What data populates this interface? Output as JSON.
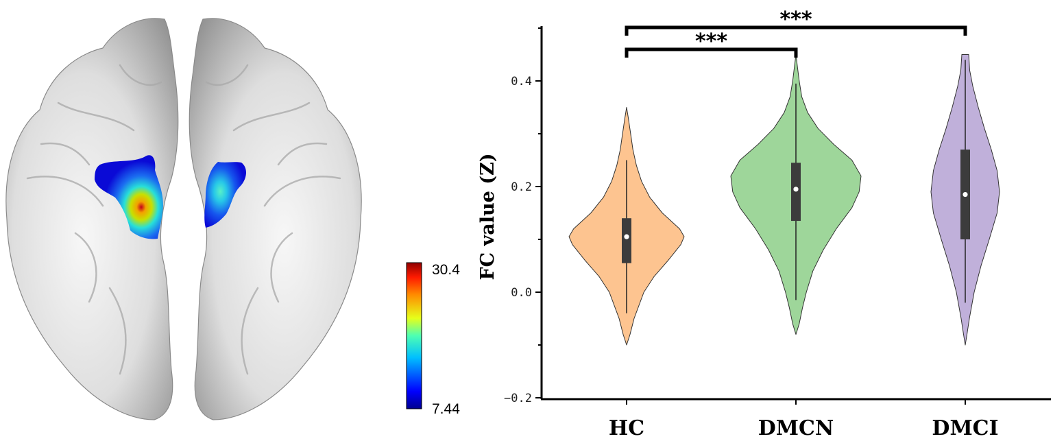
{
  "brain_map": {
    "colorbar": {
      "max_label": "30.4",
      "min_label": "7.44"
    },
    "colors": {
      "low": "#0a0ad6",
      "mid": "#27e0d9",
      "high": "#c4001b"
    }
  },
  "chart_data": {
    "type": "violin",
    "ylabel": "FC value (Z)",
    "ylim": [
      -0.2,
      0.5
    ],
    "yticks": [
      -0.2,
      0.0,
      0.2,
      0.4
    ],
    "ytick_labels": [
      "−0.2",
      "0.0",
      "0.2",
      "0.4"
    ],
    "categories": [
      "HC",
      "DMCN",
      "DMCI"
    ],
    "series": [
      {
        "category": "HC",
        "color": "#fdc490",
        "min": -0.1,
        "max": 0.35,
        "median": 0.105,
        "q1": 0.055,
        "q3": 0.14,
        "whisker_low": -0.04,
        "whisker_high": 0.25,
        "density_y": [
          -0.1,
          -0.08,
          -0.05,
          0.0,
          0.03,
          0.06,
          0.09,
          0.105,
          0.12,
          0.15,
          0.18,
          0.21,
          0.24,
          0.27,
          0.3,
          0.33,
          0.35
        ],
        "density_w": [
          0.0,
          0.06,
          0.13,
          0.3,
          0.48,
          0.72,
          0.94,
          1.0,
          0.92,
          0.62,
          0.4,
          0.26,
          0.17,
          0.11,
          0.07,
          0.03,
          0.0
        ]
      },
      {
        "category": "DMCN",
        "color": "#9ed69a",
        "min": -0.08,
        "max": 0.45,
        "median": 0.195,
        "q1": 0.135,
        "q3": 0.245,
        "whisker_low": -0.015,
        "whisker_high": 0.395,
        "density_y": [
          -0.08,
          -0.06,
          -0.03,
          0.0,
          0.04,
          0.08,
          0.12,
          0.16,
          0.19,
          0.22,
          0.25,
          0.28,
          0.31,
          0.34,
          0.37,
          0.4,
          0.43,
          0.45
        ],
        "density_w": [
          0.0,
          0.05,
          0.1,
          0.16,
          0.26,
          0.42,
          0.62,
          0.86,
          0.97,
          1.0,
          0.86,
          0.58,
          0.34,
          0.18,
          0.09,
          0.05,
          0.02,
          0.0
        ]
      },
      {
        "category": "DMCI",
        "color": "#c0b0da",
        "min": -0.1,
        "max": 0.45,
        "median": 0.185,
        "q1": 0.1,
        "q3": 0.27,
        "whisker_low": -0.02,
        "whisker_high": 0.44,
        "density_y": [
          -0.1,
          -0.08,
          -0.05,
          0.0,
          0.05,
          0.1,
          0.15,
          0.19,
          0.23,
          0.27,
          0.31,
          0.35,
          0.39,
          0.42,
          0.45
        ],
        "density_w": [
          0.0,
          0.05,
          0.12,
          0.26,
          0.46,
          0.7,
          0.93,
          1.0,
          0.93,
          0.76,
          0.56,
          0.38,
          0.22,
          0.13,
          0.1
        ]
      }
    ],
    "significance": [
      {
        "from": "HC",
        "to": "DMCN",
        "label": "***"
      },
      {
        "from": "HC",
        "to": "DMCI",
        "label": "***"
      }
    ],
    "grid": false,
    "legend": "none"
  }
}
